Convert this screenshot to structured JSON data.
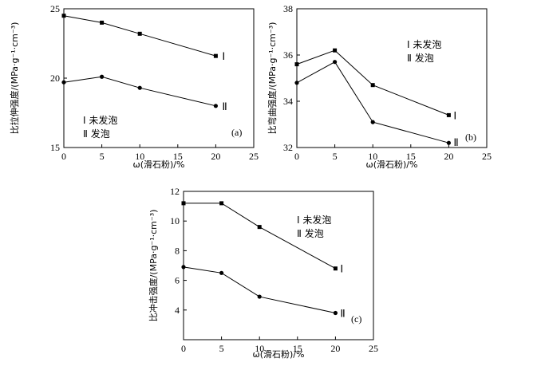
{
  "chart_data": [
    {
      "type": "line",
      "panel_label": "(a)",
      "xlabel": "ω(滑石粉)/%",
      "ylabel": "比拉伸强度/(MPa·g⁻¹·cm⁻³)",
      "xlim": [
        0,
        25
      ],
      "ylim": [
        15,
        25
      ],
      "xticks": [
        "0",
        "5",
        "10",
        "15",
        "20",
        "25"
      ],
      "yticks": [
        "15",
        "20",
        "25"
      ],
      "grid": false,
      "legend": [
        "Ⅰ 未发泡",
        "Ⅱ 发泡"
      ],
      "legend_position": "bottom-left",
      "series": [
        {
          "name": "Ⅰ",
          "x": [
            0,
            5,
            10,
            20
          ],
          "values": [
            24.5,
            24.0,
            23.2,
            21.6
          ],
          "marker": "square"
        },
        {
          "name": "Ⅱ",
          "x": [
            0,
            5,
            10,
            20
          ],
          "values": [
            19.7,
            20.1,
            19.3,
            18.0
          ],
          "marker": "circle"
        }
      ]
    },
    {
      "type": "line",
      "panel_label": "(b)",
      "xlabel": "ω(滑石粉)/%",
      "ylabel": "比弯曲强度/(MPa·g⁻¹·cm⁻³)",
      "xlim": [
        0,
        25
      ],
      "ylim": [
        32,
        38
      ],
      "xticks": [
        "0",
        "5",
        "10",
        "15",
        "20",
        "25"
      ],
      "yticks": [
        "32",
        "34",
        "36",
        "38"
      ],
      "grid": false,
      "legend": [
        "Ⅰ 未发泡",
        "Ⅱ 发泡"
      ],
      "legend_position": "top-right",
      "series": [
        {
          "name": "Ⅰ",
          "x": [
            0,
            5,
            10,
            20
          ],
          "values": [
            35.6,
            36.2,
            34.7,
            33.4
          ],
          "marker": "square"
        },
        {
          "name": "Ⅱ",
          "x": [
            0,
            5,
            10,
            20
          ],
          "values": [
            34.8,
            35.7,
            33.1,
            32.2
          ],
          "marker": "circle"
        }
      ]
    },
    {
      "type": "line",
      "panel_label": "(c)",
      "xlabel": "ω(滑石粉)/%",
      "ylabel": "比冲击强度/(MPa·g⁻¹·cm⁻³)",
      "xlim": [
        0,
        25
      ],
      "ylim": [
        2,
        12
      ],
      "xticks": [
        "0",
        "5",
        "10",
        "15",
        "20",
        "25"
      ],
      "yticks": [
        "4",
        "6",
        "8",
        "10",
        "12"
      ],
      "grid": false,
      "legend": [
        "Ⅰ 未发泡",
        "Ⅱ 发泡"
      ],
      "legend_position": "top-right",
      "series": [
        {
          "name": "Ⅰ",
          "x": [
            0,
            5,
            10,
            20
          ],
          "values": [
            11.2,
            11.2,
            9.6,
            6.8
          ],
          "marker": "square"
        },
        {
          "name": "Ⅱ",
          "x": [
            0,
            5,
            10,
            20
          ],
          "values": [
            6.9,
            6.5,
            4.9,
            3.8
          ],
          "marker": "circle"
        }
      ]
    }
  ]
}
